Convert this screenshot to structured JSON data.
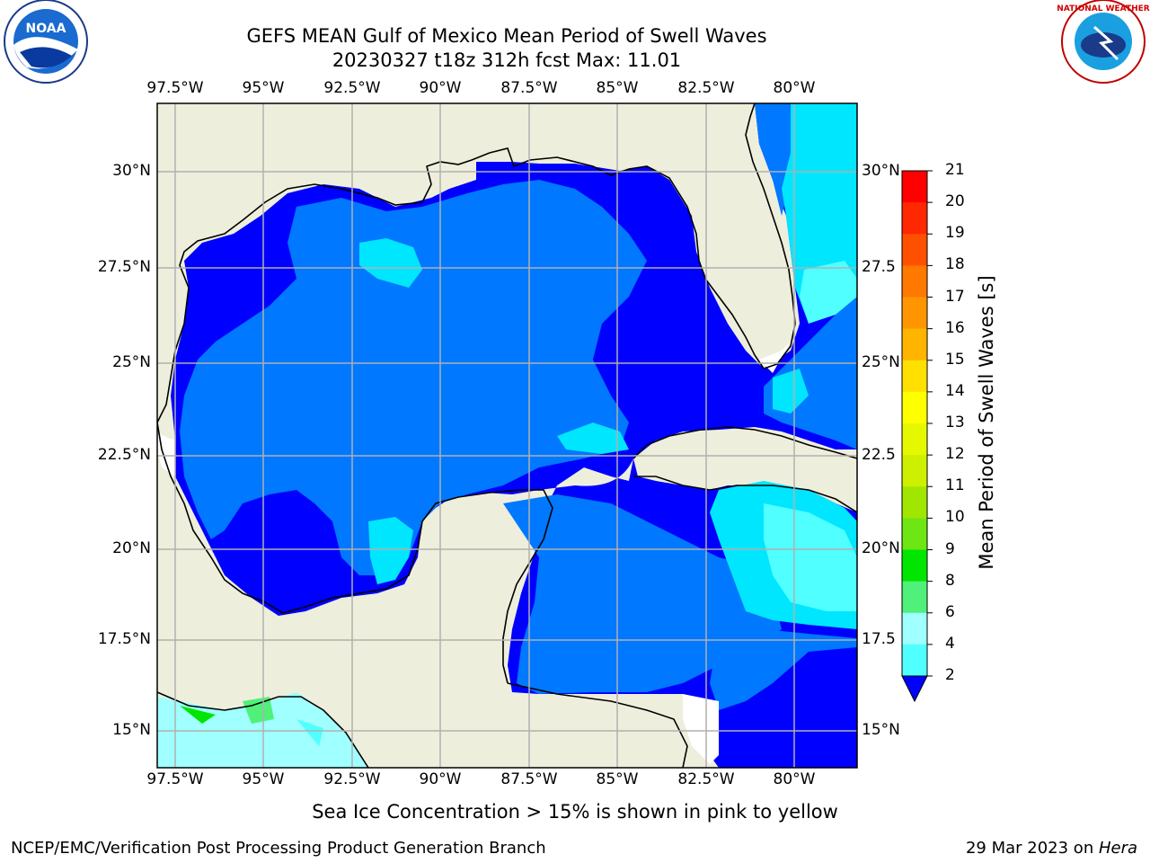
{
  "header": {
    "title_line1": "GEFS MEAN Gulf of Mexico Mean Period of Swell Waves",
    "title_line2": "20230327 t18z 312h fcst   Max: 11.01"
  },
  "logos": {
    "left": {
      "name": "NOAA",
      "ring_text": "NATIONAL OCEANIC AND ATMOSPHERIC ADMINISTRATION · U.S. DEPARTMENT OF COMMERCE"
    },
    "right": {
      "name": "NATIONAL WEATHER SERVICE"
    }
  },
  "map": {
    "lon_labels": [
      "97.5°W",
      "95°W",
      "92.5°W",
      "90°W",
      "87.5°W",
      "85°W",
      "82.5°W",
      "80°W"
    ],
    "lat_labels": [
      "30°N",
      "27.5°N",
      "25°N",
      "22.5°N",
      "20°N",
      "17.5°N",
      "15°N"
    ],
    "right_lat_labels": [
      "30°N",
      "27.5",
      "25°N",
      "22.5",
      "20°N",
      "17.5",
      "15°N"
    ],
    "colors": {
      "land": "#eeeedc",
      "grid": "#b0b0b0"
    }
  },
  "colorbar": {
    "label": "Mean Period of Swell Waves [s]",
    "ticks": [
      "21",
      "20",
      "19",
      "18",
      "17",
      "16",
      "15",
      "14",
      "13",
      "12",
      "11",
      "10",
      "9",
      "8",
      "6",
      "4",
      "2"
    ],
    "colors": [
      "#ff0000",
      "#ff2800",
      "#ff5000",
      "#ff7800",
      "#ff9600",
      "#ffb400",
      "#ffe000",
      "#ffff00",
      "#e6f800",
      "#ccf000",
      "#a0e600",
      "#6ee614",
      "#00e600",
      "#50f07a",
      "#a0ffff",
      "#50ffff",
      "#00e6ff",
      "#0078ff",
      "#0000ff"
    ],
    "extend_color": "#0000ff"
  },
  "caption": "Sea Ice Concentration > 15% is shown in pink to yellow",
  "footer": {
    "left": "NCEP/EMC/Verification Post Processing Product Generation Branch",
    "right_prefix": "29 Mar 2023 on ",
    "right_host": "Hera"
  }
}
